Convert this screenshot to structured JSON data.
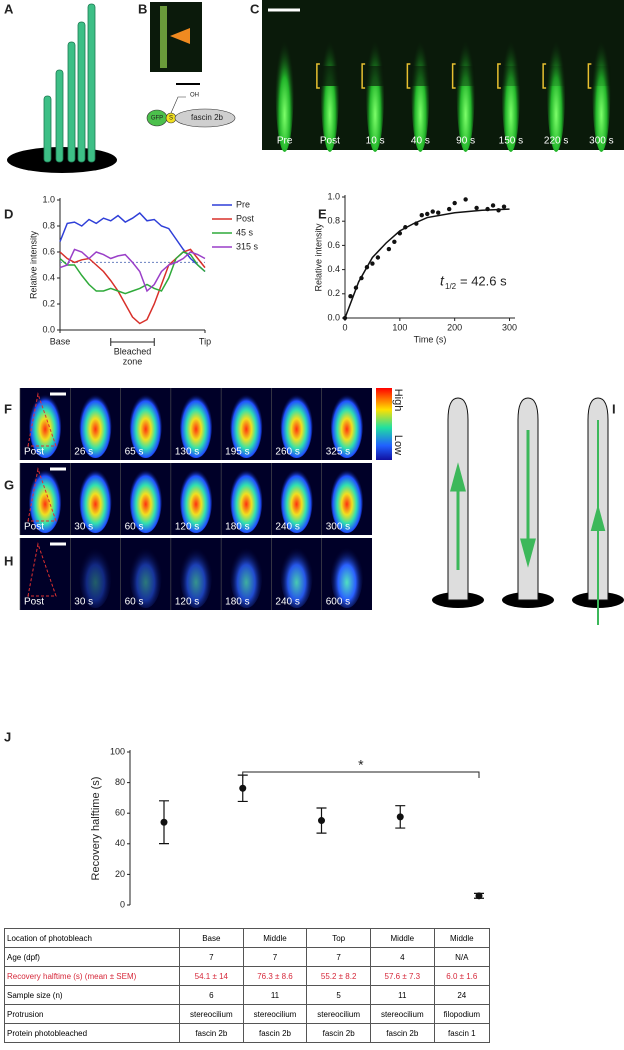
{
  "panel_a": {
    "label": "A"
  },
  "panel_b": {
    "label": "B",
    "schematic": {
      "gfp": "GFP",
      "s": "S",
      "oh": "OH",
      "protein": "fascin 2b"
    }
  },
  "panel_c": {
    "label": "C",
    "frames": [
      "Pre",
      "Post",
      "10 s",
      "40 s",
      "90 s",
      "150 s",
      "220 s",
      "300 s"
    ]
  },
  "panel_f": {
    "label": "F",
    "frames": [
      "Post",
      "26 s",
      "65 s",
      "130 s",
      "195 s",
      "260 s",
      "325 s"
    ]
  },
  "panel_g": {
    "label": "G",
    "frames": [
      "Post",
      "30 s",
      "60 s",
      "120 s",
      "180 s",
      "240 s",
      "300 s"
    ]
  },
  "panel_h": {
    "label": "H",
    "frames": [
      "Post",
      "30 s",
      "60 s",
      "120 s",
      "180 s",
      "240 s",
      "600 s"
    ]
  },
  "colorbar": {
    "high": "High",
    "low": "Low"
  },
  "panel_i": {
    "label": "I"
  },
  "chart_data": [
    {
      "label": "D",
      "type": "line",
      "ylabel": "Relative intensity",
      "categories": [
        "Base",
        null,
        null,
        null,
        null,
        null,
        null,
        null,
        null,
        null,
        null,
        null,
        null,
        null,
        null,
        null,
        null,
        null,
        null,
        null,
        "Tip"
      ],
      "annotation": [
        "Bleached",
        "zone"
      ],
      "ylim": [
        0,
        1
      ],
      "yticks": [
        {
          "value": 0,
          "label": "0.0"
        },
        0.2,
        0.4,
        0.6,
        0.8,
        {
          "value": 1,
          "label": "1.0"
        }
      ],
      "reference_line": 0.52,
      "series": [
        {
          "name": "Pre",
          "color": "#2f3fd8",
          "values": [
            0.68,
            0.82,
            0.83,
            0.8,
            0.85,
            0.82,
            0.86,
            0.84,
            0.88,
            0.83,
            0.86,
            0.9,
            0.84,
            0.85,
            0.8,
            0.78,
            0.7,
            0.62,
            0.55,
            0.5,
            0.45
          ]
        },
        {
          "name": "Post",
          "color": "#d8302a",
          "values": [
            0.6,
            0.55,
            0.52,
            0.54,
            0.55,
            0.5,
            0.45,
            0.38,
            0.3,
            0.2,
            0.1,
            0.05,
            0.08,
            0.2,
            0.35,
            0.5,
            0.55,
            0.6,
            0.62,
            0.55,
            0.48
          ]
        },
        {
          "name": "45 s",
          "color": "#2faa3a",
          "values": [
            0.55,
            0.5,
            0.5,
            0.42,
            0.35,
            0.3,
            0.3,
            0.32,
            0.3,
            0.28,
            0.3,
            0.32,
            0.35,
            0.32,
            0.3,
            0.4,
            0.55,
            0.6,
            0.58,
            0.5,
            0.45
          ]
        },
        {
          "name": "315 s",
          "color": "#9a3fc8",
          "values": [
            0.48,
            0.5,
            0.62,
            0.6,
            0.55,
            0.6,
            0.58,
            0.55,
            0.57,
            0.58,
            0.52,
            0.45,
            0.3,
            0.35,
            0.45,
            0.5,
            0.52,
            0.55,
            0.6,
            0.58,
            0.55
          ]
        }
      ]
    },
    {
      "label": "E",
      "type": "scatter",
      "xlabel": "Time (s)",
      "ylabel": "Relative intensity",
      "xlim": [
        0,
        310
      ],
      "xticks": [
        0,
        100,
        200,
        300
      ],
      "ylim": [
        0,
        1
      ],
      "yticks": [
        {
          "value": 0,
          "label": "0.0"
        },
        0.2,
        0.4,
        0.6,
        0.8,
        {
          "value": 1,
          "label": "1.0"
        }
      ],
      "annotation": {
        "symbol": "t",
        "subscript": "1/2",
        "text": "=  42.6 s"
      },
      "series": [
        {
          "color": "#111",
          "x": [
            0,
            10,
            20,
            30,
            40,
            50,
            60,
            80,
            90,
            100,
            110,
            130,
            140,
            150,
            160,
            170,
            190,
            200,
            220,
            240,
            260,
            270,
            280,
            290
          ],
          "values": [
            0,
            0.18,
            0.25,
            0.33,
            0.42,
            0.45,
            0.5,
            0.57,
            0.63,
            0.7,
            0.75,
            0.78,
            0.85,
            0.86,
            0.88,
            0.87,
            0.9,
            0.95,
            0.98,
            0.91,
            0.9,
            0.93,
            0.89,
            0.92
          ]
        },
        {
          "kind": "line",
          "color": "#111",
          "x": [
            0,
            25,
            50,
            75,
            100,
            125,
            150,
            200,
            250,
            300
          ],
          "values": [
            0,
            0.3,
            0.5,
            0.62,
            0.72,
            0.78,
            0.83,
            0.87,
            0.89,
            0.9
          ]
        }
      ]
    },
    {
      "label": "J",
      "type": "errorbar",
      "ylabel": "Recovery halftime (s)",
      "categories": [
        null,
        null,
        null,
        null,
        null
      ],
      "values": [
        54.1,
        76.3,
        55.2,
        57.6,
        6.0
      ],
      "errors": [
        14,
        8.6,
        8.2,
        7.3,
        1.6
      ],
      "ylim": [
        0,
        100
      ],
      "yticks": [
        0,
        20,
        40,
        60,
        80,
        100
      ],
      "color": "#111",
      "significance_label": "*"
    }
  ],
  "table": {
    "rows": [
      [
        "Location of photobleach",
        "Base",
        "Middle",
        "Top",
        "Middle",
        "Middle"
      ],
      [
        "Age (dpf)",
        "7",
        "7",
        "7",
        "4",
        "N/A"
      ],
      [
        "Recovery halftime (s) (mean ± SEM)",
        "54.1 ± 14",
        "76.3 ± 8.6",
        "55.2 ± 8.2",
        "57.6 ± 7.3",
        "6.0 ± 1.6"
      ],
      [
        "Sample size (n)",
        "6",
        "11",
        "5",
        "11",
        "24"
      ],
      [
        "Protrusion",
        "stereocilium",
        "stereocilium",
        "stereocilium",
        "stereocilium",
        "filopodium"
      ],
      [
        "Protein photobleached",
        "fascin 2b",
        "fascin 2b",
        "fascin 2b",
        "fascin 2b",
        "fascin 1"
      ]
    ]
  }
}
